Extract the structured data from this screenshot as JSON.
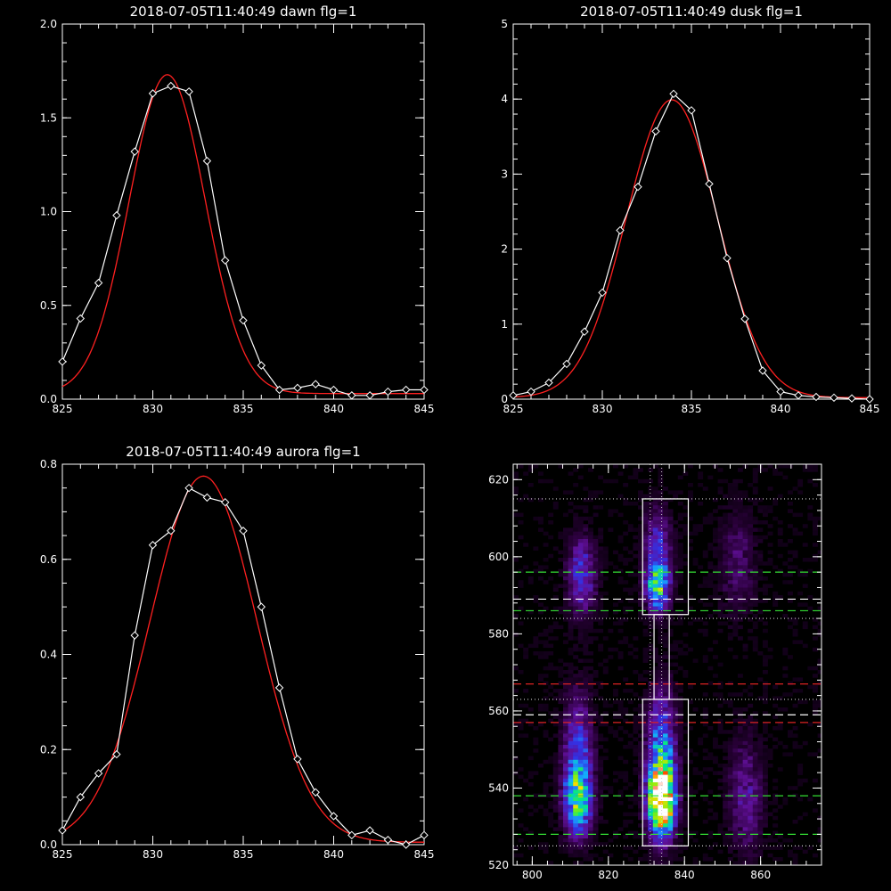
{
  "chart_data": [
    {
      "id": "dawn",
      "type": "line",
      "title": "2018-07-05T11:40:49 dawn flg=1",
      "xlim": [
        825,
        845
      ],
      "ylim": [
        0,
        2.0
      ],
      "xticks": [
        "825",
        "830",
        "835",
        "840",
        "845"
      ],
      "yticks": [
        "0.0",
        "0.5",
        "1.0",
        "1.5",
        "2.0"
      ],
      "series": [
        {
          "style": "data",
          "color": "#ffffff",
          "marker": "diamond",
          "x": [
            825,
            826,
            827,
            828,
            829,
            830,
            831,
            832,
            833,
            834,
            835,
            836,
            837,
            838,
            839,
            840,
            841,
            842,
            843,
            844,
            845
          ],
          "y": [
            0.2,
            0.43,
            0.62,
            0.98,
            1.32,
            1.63,
            1.67,
            1.64,
            1.27,
            0.74,
            0.42,
            0.18,
            0.05,
            0.06,
            0.08,
            0.05,
            0.02,
            0.02,
            0.04,
            0.05,
            0.05
          ]
        },
        {
          "style": "fit",
          "color": "#ff2020",
          "gauss": {
            "a": 1.7,
            "mu": 830.8,
            "sigma": 2.1,
            "b": 0.03
          }
        }
      ]
    },
    {
      "id": "dusk",
      "type": "line",
      "title": "2018-07-05T11:40:49 dusk flg=1",
      "xlim": [
        825,
        845
      ],
      "ylim": [
        0,
        5
      ],
      "xticks": [
        "825",
        "830",
        "835",
        "840",
        "845"
      ],
      "yticks": [
        "0",
        "1",
        "2",
        "3",
        "4",
        "5"
      ],
      "series": [
        {
          "style": "data",
          "color": "#ffffff",
          "marker": "diamond",
          "x": [
            825,
            826,
            827,
            828,
            829,
            830,
            831,
            832,
            833,
            834,
            835,
            836,
            837,
            838,
            839,
            840,
            841,
            842,
            843,
            844,
            845
          ],
          "y": [
            0.05,
            0.1,
            0.22,
            0.47,
            0.9,
            1.42,
            2.25,
            2.83,
            3.57,
            4.07,
            3.85,
            2.87,
            1.88,
            1.07,
            0.38,
            0.1,
            0.05,
            0.03,
            0.02,
            0.01,
            0.0
          ]
        },
        {
          "style": "fit",
          "color": "#ff2020",
          "gauss": {
            "a": 3.97,
            "mu": 833.9,
            "sigma": 2.55,
            "b": 0.02
          }
        }
      ]
    },
    {
      "id": "aurora",
      "type": "line",
      "title": "2018-07-05T11:40:49 aurora flg=1",
      "xlim": [
        825,
        845
      ],
      "ylim": [
        0,
        0.8
      ],
      "xticks": [
        "825",
        "830",
        "835",
        "840",
        "845"
      ],
      "yticks": [
        "0.0",
        "0.2",
        "0.4",
        "0.6",
        "0.8"
      ],
      "series": [
        {
          "style": "data",
          "color": "#ffffff",
          "marker": "diamond",
          "x": [
            825,
            826,
            827,
            828,
            829,
            830,
            831,
            832,
            833,
            834,
            835,
            836,
            837,
            838,
            839,
            840,
            841,
            842,
            843,
            844,
            845
          ],
          "y": [
            0.03,
            0.1,
            0.15,
            0.19,
            0.44,
            0.63,
            0.66,
            0.75,
            0.73,
            0.72,
            0.66,
            0.5,
            0.33,
            0.18,
            0.11,
            0.06,
            0.02,
            0.03,
            0.01,
            0.0,
            0.02
          ]
        },
        {
          "style": "fit",
          "color": "#ff2020",
          "gauss": {
            "a": 0.77,
            "mu": 832.8,
            "sigma": 2.95,
            "b": 0.005
          }
        }
      ]
    },
    {
      "id": "spectral-image",
      "type": "heatmap",
      "xlim": [
        795,
        876
      ],
      "ylim": [
        520,
        624
      ],
      "xticks": [
        800,
        820,
        840,
        860
      ],
      "yticks": [
        520,
        540,
        560,
        580,
        600,
        620
      ],
      "blobs": [
        {
          "x": 834,
          "y": 537,
          "sx": 2.3,
          "sy": 6,
          "peak": 1.0
        },
        {
          "x": 834,
          "y": 548,
          "sx": 2.5,
          "sy": 11,
          "peak": 0.45
        },
        {
          "x": 833,
          "y": 592,
          "sx": 2.0,
          "sy": 4,
          "peak": 0.55
        },
        {
          "x": 833,
          "y": 602,
          "sx": 2.4,
          "sy": 7,
          "peak": 0.28
        },
        {
          "x": 812,
          "y": 537,
          "sx": 2.5,
          "sy": 6,
          "peak": 0.55
        },
        {
          "x": 812,
          "y": 550,
          "sx": 2.6,
          "sy": 10,
          "peak": 0.3
        },
        {
          "x": 813,
          "y": 595,
          "sx": 2.5,
          "sy": 7,
          "peak": 0.3
        },
        {
          "x": 856,
          "y": 538,
          "sx": 3.0,
          "sy": 10,
          "peak": 0.2
        },
        {
          "x": 854,
          "y": 598,
          "sx": 3.0,
          "sy": 9,
          "peak": 0.15
        }
      ],
      "boxes": [
        {
          "x0": 829,
          "x1": 841,
          "y0": 525,
          "y1": 563
        },
        {
          "x0": 829,
          "x1": 841,
          "y0": 585,
          "y1": 615
        },
        {
          "x0": 832,
          "x1": 836,
          "y0": 563,
          "y1": 585
        }
      ],
      "hlines": [
        {
          "y": 615,
          "color": "#cccccc",
          "dash": "dot"
        },
        {
          "y": 596,
          "color": "#33dd33",
          "dash": "dash"
        },
        {
          "y": 589,
          "color": "#ffffff",
          "dash": "dash"
        },
        {
          "y": 586,
          "color": "#33dd33",
          "dash": "dash"
        },
        {
          "y": 584,
          "color": "#cccccc",
          "dash": "dot"
        },
        {
          "y": 567,
          "color": "#dd2222",
          "dash": "dash"
        },
        {
          "y": 563,
          "color": "#cccccc",
          "dash": "dot"
        },
        {
          "y": 559,
          "color": "#ffffff",
          "dash": "dash"
        },
        {
          "y": 557,
          "color": "#dd2222",
          "dash": "dash"
        },
        {
          "y": 538,
          "color": "#33dd33",
          "dash": "dash"
        },
        {
          "y": 528,
          "color": "#33dd33",
          "dash": "dash"
        },
        {
          "y": 525,
          "color": "#cccccc",
          "dash": "dot"
        }
      ],
      "vlines": [
        {
          "x": 831,
          "color": "#cccccc",
          "dash": "dot"
        },
        {
          "x": 834,
          "color": "#cccccc",
          "dash": "dot"
        }
      ]
    }
  ]
}
